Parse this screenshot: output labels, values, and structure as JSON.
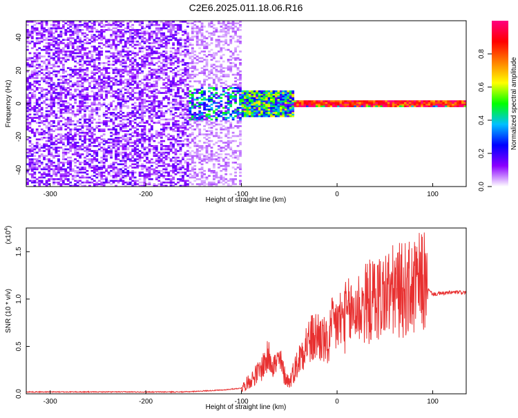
{
  "title": "C2E6.2025.011.18.06.R16",
  "chart_data": [
    {
      "type": "heatmap",
      "xlabel": "Height of straight line (km)",
      "ylabel": "Frequency (Hz)",
      "xlim": [
        -325,
        135
      ],
      "ylim": [
        -50,
        50
      ],
      "x_ticks": [
        -300,
        -200,
        -100,
        0,
        100
      ],
      "x_tick_labels": [
        "-300",
        "-200",
        "-100",
        "0",
        "100"
      ],
      "y_ticks": [
        -40,
        -20,
        0,
        20,
        40
      ],
      "y_tick_labels": [
        "-40",
        "-20",
        "0",
        "20",
        "40"
      ],
      "colorbar": {
        "label": "Normalized spectral amplitude",
        "range": [
          0,
          1
        ],
        "ticks": [
          0.0,
          0.2,
          0.4,
          0.6,
          0.8
        ],
        "tick_labels": [
          "0.0",
          "0.2",
          "0.4",
          "0.6",
          "0.8"
        ],
        "colors": [
          "#ffffff",
          "#8b00ff",
          "#0000ff",
          "#00c0ff",
          "#00ff00",
          "#ffff00",
          "#ff8000",
          "#ff0000",
          "#ff0080"
        ]
      },
      "regions": [
        {
          "x": [
            -325,
            -155
          ],
          "f": [
            -50,
            50
          ],
          "amplitude": 0.12
        },
        {
          "x": [
            -155,
            -100
          ],
          "f": [
            -50,
            50
          ],
          "amplitude": 0.06
        },
        {
          "x": [
            -155,
            -100
          ],
          "f": [
            -10,
            10
          ],
          "amplitude": 0.35
        },
        {
          "x": [
            -100,
            -45
          ],
          "f": [
            -8,
            8
          ],
          "amplitude": 0.45
        },
        {
          "x": [
            -45,
            135
          ],
          "f": [
            -2,
            2
          ],
          "amplitude": 0.95
        }
      ]
    },
    {
      "type": "line",
      "xlabel": "Height of straight line (km)",
      "ylabel": "SNR (10 * v/v)",
      "y_multiplier": "(x10",
      "y_multiplier_exp": "4",
      "y_multiplier_close": ")",
      "xlim": [
        -325,
        135
      ],
      "ylim": [
        0,
        1.75
      ],
      "x_ticks": [
        -300,
        -200,
        -100,
        0,
        100
      ],
      "x_tick_labels": [
        "-300",
        "-200",
        "-100",
        "0",
        "100"
      ],
      "y_ticks": [
        0.0,
        0.5,
        1.0,
        1.5
      ],
      "y_tick_labels": [
        "0.0",
        "0.5",
        "1.0",
        "1.5"
      ],
      "color": "#e83030",
      "series": [
        {
          "x": [
            -325,
            -300,
            -250,
            -200,
            -160,
            -140,
            -120,
            -100,
            -90,
            -80,
            -75,
            -70,
            -65,
            -60,
            -55,
            -50,
            -45,
            -40,
            -35,
            -30,
            -25,
            -20,
            -15,
            -10,
            -5,
            0,
            5,
            10,
            15,
            20,
            25,
            30,
            40,
            50,
            60,
            70,
            80,
            85,
            90,
            95,
            100,
            110,
            120,
            135
          ],
          "y": [
            0.02,
            0.02,
            0.02,
            0.02,
            0.02,
            0.03,
            0.04,
            0.06,
            0.15,
            0.25,
            0.35,
            0.4,
            0.3,
            0.35,
            0.2,
            0.12,
            0.25,
            0.35,
            0.5,
            0.55,
            0.58,
            0.62,
            0.58,
            0.5,
            0.7,
            0.75,
            0.78,
            0.82,
            0.85,
            0.9,
            0.92,
            0.95,
            1.0,
            1.05,
            1.08,
            1.1,
            1.1,
            1.15,
            1.2,
            1.1,
            1.05,
            1.06,
            1.07,
            1.07
          ]
        }
      ]
    }
  ]
}
